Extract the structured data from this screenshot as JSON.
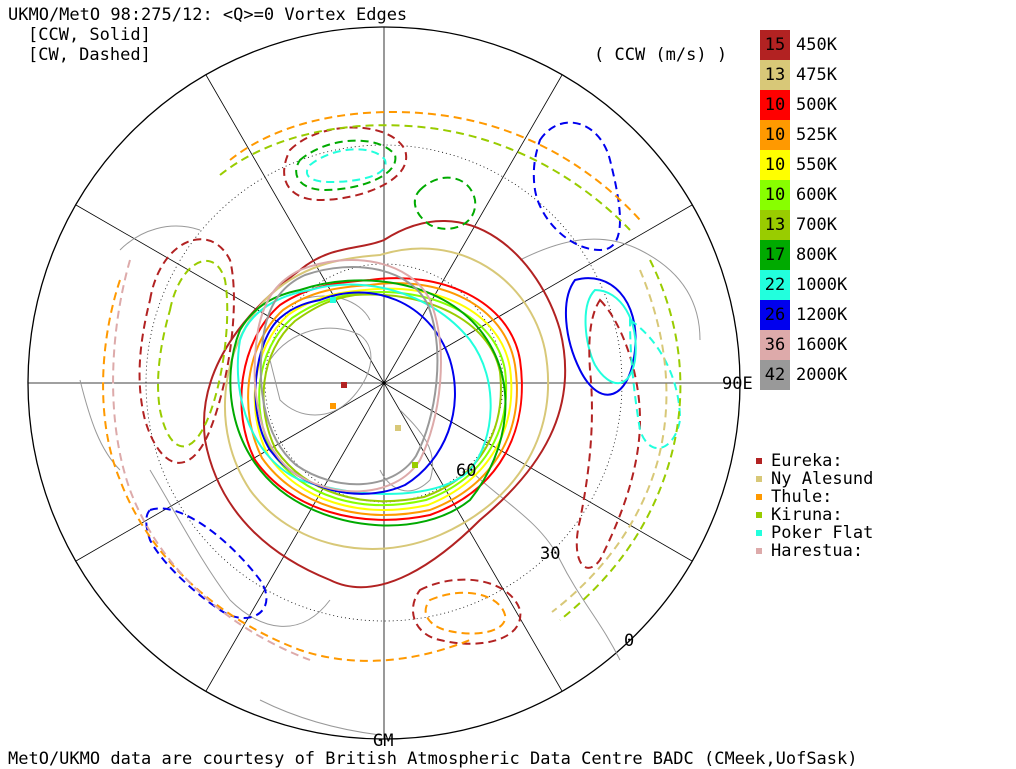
{
  "header": {
    "title": "UKMO/MetO 98:275/12: <Q>=0 Vortex Edges",
    "line_ccw": "[CCW, Solid]",
    "line_cw": "[CW, Dashed]",
    "units": "( CCW (m/s) )"
  },
  "legend": [
    {
      "value": "15",
      "level": "450K",
      "color": "#b22222"
    },
    {
      "value": "13",
      "level": "475K",
      "color": "#d8c878"
    },
    {
      "value": "10",
      "level": "500K",
      "color": "#ff0000"
    },
    {
      "value": "10",
      "level": "525K",
      "color": "#ff9900"
    },
    {
      "value": "10",
      "level": "550K",
      "color": "#ffff00"
    },
    {
      "value": "10",
      "level": "600K",
      "color": "#88ff00"
    },
    {
      "value": "13",
      "level": "700K",
      "color": "#99cc00"
    },
    {
      "value": "17",
      "level": "800K",
      "color": "#00aa00"
    },
    {
      "value": "22",
      "level": "1000K",
      "color": "#22ffdd"
    },
    {
      "value": "26",
      "level": "1200K",
      "color": "#0000ee"
    },
    {
      "value": "36",
      "level": "1600K",
      "color": "#ddaaaa"
    },
    {
      "value": "42",
      "level": "2000K",
      "color": "#999999"
    }
  ],
  "stations": [
    {
      "name": "Eureka:",
      "color": "#b22222"
    },
    {
      "name": "Ny Alesund",
      "color": "#d8c878"
    },
    {
      "name": "Thule:",
      "color": "#ff9900"
    },
    {
      "name": "Kiruna:",
      "color": "#99cc00"
    },
    {
      "name": "Poker Flat",
      "color": "#22ffdd"
    },
    {
      "name": "Harestua:",
      "color": "#ddaaaa"
    }
  ],
  "map_labels": {
    "lon_90e": "90E",
    "lon_gm": "GM",
    "lat_60": "60",
    "lat_30": "30",
    "lat_0": "0"
  },
  "footer": "MetO/UKMO data are courtesy of British Atmospheric Data Centre BADC (CMeek,UofSask)"
}
